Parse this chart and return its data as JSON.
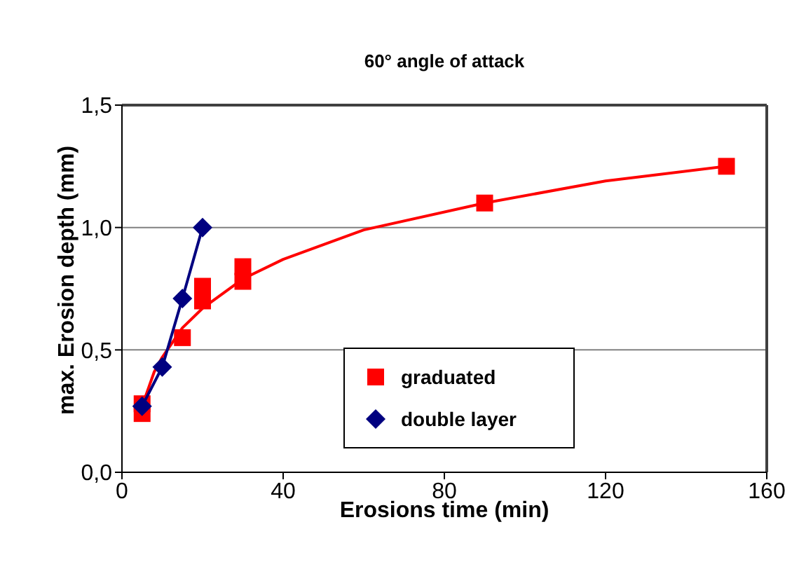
{
  "chart_data": {
    "type": "scatter",
    "title": "60° angle of attack",
    "xlabel": "Erosions time (min)",
    "ylabel": "max. Erosion depth (mm)",
    "xlim": [
      0,
      160
    ],
    "xticks": [
      0,
      40,
      80,
      120,
      160
    ],
    "ylim": [
      0,
      1.5
    ],
    "yticks": [
      {
        "value": 0,
        "label": "0,0"
      },
      {
        "value": 0.5,
        "label": "0,5"
      },
      {
        "value": 1,
        "label": "1,0"
      },
      {
        "value": 1.5,
        "label": "1,5"
      }
    ],
    "grid": "y",
    "legend": "bottom",
    "series": [
      {
        "name": "graduated",
        "marker": "square",
        "color": "#ff0000",
        "x": [
          5,
          5,
          15,
          20,
          20,
          30,
          30,
          90,
          150
        ],
        "values": [
          0.28,
          0.24,
          0.55,
          0.76,
          0.7,
          0.84,
          0.78,
          1.1,
          1.25
        ]
      },
      {
        "type": "line",
        "marker": "none",
        "color": "#ff0000",
        "x": [
          5,
          8,
          10,
          15,
          20,
          30,
          40,
          60,
          90,
          120,
          150
        ],
        "values": [
          0.27,
          0.41,
          0.47,
          0.59,
          0.67,
          0.79,
          0.87,
          0.99,
          1.1,
          1.19,
          1.25
        ]
      },
      {
        "name": "double layer",
        "type": "line",
        "marker": "diamond",
        "color": "#000080",
        "x": [
          5,
          10,
          15,
          20
        ],
        "values": [
          0.27,
          0.43,
          0.71,
          1.0
        ]
      }
    ]
  }
}
